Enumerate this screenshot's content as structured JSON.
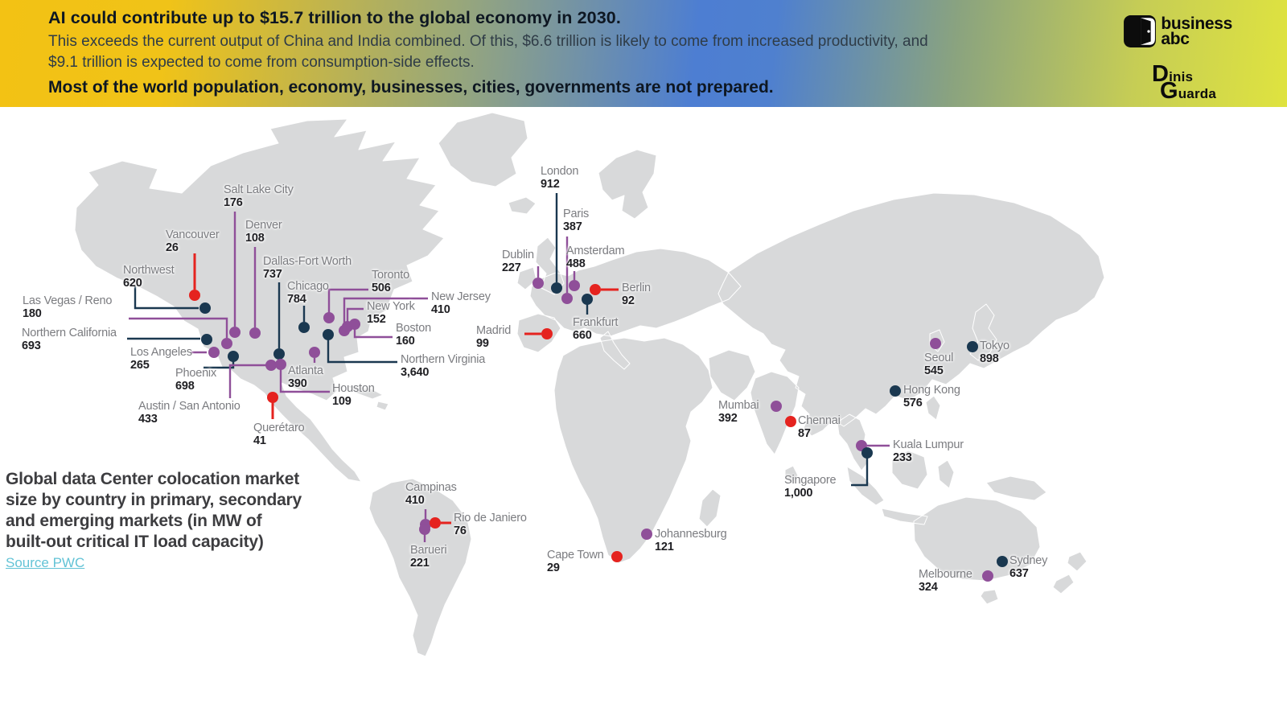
{
  "header": {
    "title": "AI could contribute up to $15.7 trillion to the global economy in 2030.",
    "subtitle_lines": [
      "This exceeds the current output of China and India combined. Of this, $6.6 trillion is likely to come from increased productivity, and",
      "$9.1 trillion is expected to come from consumption-side effects."
    ],
    "warning": "Most of the world population, economy, businesses, cities, governments are not prepared.",
    "gradient": {
      "left": "#f3c214",
      "middle": "#4d7ed2",
      "right": "#dfe33f"
    }
  },
  "branding": {
    "businessabc": {
      "line1": "business",
      "line2": "abc"
    },
    "dinisguarda": {
      "line1": "Dinis",
      "line2": "Guarda"
    }
  },
  "caption": {
    "lines": [
      "Global data Center colocation market",
      "size by country in primary, secondary",
      "and emerging markets (in MW of",
      "built-out critical IT load capacity)"
    ],
    "source_label": "Source PWC"
  },
  "chart_data": {
    "type": "scatter",
    "basemap": "world",
    "unit": "MW",
    "title": "Global data Center colocation market size by country in primary, secondary and emerging markets (in MW of built-out critical IT load capacity)",
    "source": "PWC",
    "legend_position": "none",
    "category_colors": {
      "primary": "#1a3850",
      "secondary": "#8f4f99",
      "emerging": "#e5231f"
    },
    "map_land_color": "#d8d9da",
    "cities": [
      {
        "name": "Vancouver",
        "value": 26,
        "display": "26",
        "cat": "emerging",
        "dot": [
          242,
          367
        ],
        "label": [
          206,
          284
        ],
        "line": [
          [
            242,
            315
          ],
          [
            242,
            360
          ]
        ]
      },
      {
        "name": "Northwest",
        "value": 620,
        "display": "620",
        "cat": "primary",
        "dot": [
          255,
          383
        ],
        "label": [
          153,
          328
        ],
        "line": [
          [
            168,
            356
          ],
          [
            168,
            383
          ],
          [
            247,
            383
          ]
        ]
      },
      {
        "name": "Salt Lake City",
        "value": 176,
        "display": "176",
        "cat": "secondary",
        "dot": [
          292,
          413
        ],
        "label": [
          278,
          228
        ],
        "line": [
          [
            292,
            263
          ],
          [
            292,
            406
          ]
        ]
      },
      {
        "name": "Denver",
        "value": 108,
        "display": "108",
        "cat": "secondary",
        "dot": [
          317,
          414
        ],
        "label": [
          305,
          272
        ],
        "line": [
          [
            317,
            307
          ],
          [
            317,
            407
          ]
        ]
      },
      {
        "name": "Las Vegas / Reno",
        "value": 180,
        "display": "180",
        "cat": "secondary",
        "dot": [
          282,
          427
        ],
        "label": [
          28,
          366
        ],
        "line": [
          [
            160,
            396
          ],
          [
            282,
            396
          ],
          [
            282,
            420
          ]
        ]
      },
      {
        "name": "Northern California",
        "value": 693,
        "display": "693",
        "cat": "primary",
        "dot": [
          257,
          422
        ],
        "label": [
          27,
          406
        ],
        "line": [
          [
            158,
            421
          ],
          [
            249,
            421
          ]
        ]
      },
      {
        "name": "Los Angeles",
        "value": 265,
        "display": "265",
        "cat": "secondary",
        "dot": [
          266,
          438
        ],
        "label": [
          162,
          430
        ],
        "line": [
          [
            237,
            438
          ],
          [
            257,
            438
          ]
        ]
      },
      {
        "name": "Phoenix",
        "value": 698,
        "display": "698",
        "cat": "primary",
        "dot": [
          290,
          443
        ],
        "label": [
          218,
          456
        ],
        "line": [
          [
            290,
            443
          ],
          [
            290,
            457
          ],
          [
            253,
            457
          ]
        ]
      },
      {
        "name": "Austin / San Antonio",
        "value": 433,
        "display": "433",
        "cat": "secondary",
        "dot": [
          337,
          454
        ],
        "label": [
          172,
          497
        ],
        "line": [
          [
            337,
            454
          ],
          [
            286,
            454
          ],
          [
            286,
            495
          ]
        ]
      },
      {
        "name": "Dallas-Fort Worth",
        "value": 737,
        "display": "737",
        "cat": "primary",
        "dot": [
          347,
          440
        ],
        "label": [
          327,
          317
        ],
        "line": [
          [
            347,
            351
          ],
          [
            347,
            433
          ]
        ]
      },
      {
        "name": "Houston",
        "value": 109,
        "display": "109",
        "cat": "secondary",
        "dot": [
          349,
          453
        ],
        "label": [
          413,
          475
        ],
        "line": [
          [
            349,
            459
          ],
          [
            349,
            487
          ],
          [
            410,
            487
          ]
        ]
      },
      {
        "name": "Querétaro",
        "value": 41,
        "display": "41",
        "cat": "emerging",
        "dot": [
          339,
          494
        ],
        "label": [
          315,
          524
        ],
        "line": [
          [
            339,
            500
          ],
          [
            339,
            521
          ]
        ]
      },
      {
        "name": "Chicago",
        "value": 784,
        "display": "784",
        "cat": "primary",
        "dot": [
          378,
          407
        ],
        "label": [
          357,
          348
        ],
        "line": [
          [
            378,
            380
          ],
          [
            378,
            400
          ]
        ]
      },
      {
        "name": "Atlanta",
        "value": 390,
        "display": "390",
        "cat": "secondary",
        "dot": [
          391,
          438
        ],
        "label": [
          358,
          453
        ],
        "line": [
          [
            391,
            445
          ],
          [
            391,
            451
          ]
        ]
      },
      {
        "name": "Toronto",
        "value": 506,
        "display": "506",
        "cat": "secondary",
        "dot": [
          409,
          395
        ],
        "label": [
          462,
          334
        ],
        "line": [
          [
            409,
            395
          ],
          [
            409,
            360
          ],
          [
            458,
            360
          ]
        ]
      },
      {
        "name": "New Jersey",
        "value": 410,
        "display": "410",
        "cat": "secondary",
        "dot": [
          428,
          411
        ],
        "label": [
          536,
          361
        ],
        "line": [
          [
            428,
            411
          ],
          [
            428,
            371
          ],
          [
            532,
            371
          ]
        ]
      },
      {
        "name": "New York",
        "value": 152,
        "display": "152",
        "cat": "secondary",
        "dot": [
          432,
          406
        ],
        "label": [
          456,
          373
        ],
        "line": [
          [
            432,
            406
          ],
          [
            432,
            384
          ],
          [
            452,
            384
          ]
        ]
      },
      {
        "name": "Boston",
        "value": 160,
        "display": "160",
        "cat": "secondary",
        "dot": [
          441,
          403
        ],
        "label": [
          492,
          400
        ],
        "line": [
          [
            441,
            403
          ],
          [
            441,
            419
          ],
          [
            488,
            419
          ]
        ]
      },
      {
        "name": "Northern Virginia",
        "value": 3640,
        "display": "3,640",
        "cat": "primary",
        "dot": [
          408,
          416
        ],
        "label": [
          498,
          439
        ],
        "line": [
          [
            408,
            416
          ],
          [
            408,
            450
          ],
          [
            494,
            450
          ]
        ]
      },
      {
        "name": "Campinas",
        "value": 410,
        "display": "410",
        "cat": "secondary",
        "dot": [
          529,
          652
        ],
        "label": [
          504,
          598
        ],
        "line": [
          [
            529,
            633
          ],
          [
            529,
            645
          ]
        ]
      },
      {
        "name": "Rio de Janiero",
        "value": 76,
        "display": "76",
        "cat": "emerging",
        "dot": [
          541,
          650
        ],
        "label": [
          564,
          636
        ],
        "line": [
          [
            548,
            650
          ],
          [
            561,
            650
          ]
        ]
      },
      {
        "name": "Barueri",
        "value": 221,
        "display": "221",
        "cat": "secondary",
        "dot": [
          528,
          658
        ],
        "label": [
          510,
          676
        ],
        "line": [
          [
            528,
            664
          ],
          [
            528,
            674
          ]
        ]
      },
      {
        "name": "Dublin",
        "value": 227,
        "display": "227",
        "cat": "secondary",
        "dot": [
          669,
          352
        ],
        "label": [
          624,
          309
        ],
        "line": [
          [
            669,
            331
          ],
          [
            669,
            345
          ]
        ]
      },
      {
        "name": "London",
        "value": 912,
        "display": "912",
        "cat": "primary",
        "dot": [
          692,
          358
        ],
        "label": [
          672,
          205
        ],
        "line": [
          [
            692,
            240
          ],
          [
            692,
            351
          ]
        ]
      },
      {
        "name": "Paris",
        "value": 387,
        "display": "387",
        "cat": "secondary",
        "dot": [
          705,
          371
        ],
        "label": [
          700,
          258
        ],
        "line": [
          [
            705,
            294
          ],
          [
            705,
            364
          ]
        ]
      },
      {
        "name": "Amsterdam",
        "value": 488,
        "display": "488",
        "cat": "secondary",
        "dot": [
          714,
          355
        ],
        "label": [
          704,
          304
        ],
        "line": [
          [
            714,
            337
          ],
          [
            714,
            348
          ]
        ]
      },
      {
        "name": "Berlin",
        "value": 92,
        "display": "92",
        "cat": "emerging",
        "dot": [
          740,
          360
        ],
        "label": [
          773,
          350
        ],
        "line": [
          [
            747,
            360
          ],
          [
            769,
            360
          ]
        ]
      },
      {
        "name": "Frankfurt",
        "value": 660,
        "display": "660",
        "cat": "primary",
        "dot": [
          730,
          372
        ],
        "label": [
          712,
          393
        ],
        "line": [
          [
            730,
            378
          ],
          [
            730,
            391
          ]
        ]
      },
      {
        "name": "Madrid",
        "value": 99,
        "display": "99",
        "cat": "emerging",
        "dot": [
          680,
          415
        ],
        "label": [
          592,
          403
        ],
        "line": [
          [
            652,
            415
          ],
          [
            673,
            415
          ]
        ]
      },
      {
        "name": "Mumbai",
        "value": 392,
        "display": "392",
        "cat": "secondary",
        "dot": [
          965,
          505
        ],
        "label": [
          893,
          496
        ],
        "line": null
      },
      {
        "name": "Chennai",
        "value": 87,
        "display": "87",
        "cat": "emerging",
        "dot": [
          983,
          524
        ],
        "label": [
          992,
          515
        ],
        "line": null
      },
      {
        "name": "Seoul",
        "value": 545,
        "display": "545",
        "cat": "secondary",
        "dot": [
          1163,
          427
        ],
        "label": [
          1149,
          437
        ],
        "line": null
      },
      {
        "name": "Tokyo",
        "value": 898,
        "display": "898",
        "cat": "primary",
        "dot": [
          1209,
          431
        ],
        "label": [
          1218,
          422
        ],
        "line": null
      },
      {
        "name": "Hong Kong",
        "value": 576,
        "display": "576",
        "cat": "primary",
        "dot": [
          1113,
          486
        ],
        "label": [
          1123,
          477
        ],
        "line": null
      },
      {
        "name": "Kuala Lumpur",
        "value": 233,
        "display": "233",
        "cat": "secondary",
        "dot": [
          1071,
          554
        ],
        "label": [
          1110,
          545
        ],
        "line": [
          [
            1078,
            554
          ],
          [
            1106,
            554
          ]
        ]
      },
      {
        "name": "Singapore",
        "value": 1000,
        "display": "1,000",
        "cat": "primary",
        "dot": [
          1078,
          563
        ],
        "label": [
          975,
          589
        ],
        "line": [
          [
            1078,
            563
          ],
          [
            1078,
            603
          ],
          [
            1058,
            603
          ]
        ]
      },
      {
        "name": "Johannesburg",
        "value": 121,
        "display": "121",
        "cat": "secondary",
        "dot": [
          804,
          664
        ],
        "label": [
          814,
          656
        ],
        "line": null
      },
      {
        "name": "Cape Town",
        "value": 29,
        "display": "29",
        "cat": "emerging",
        "dot": [
          767,
          692
        ],
        "label": [
          680,
          682
        ],
        "line": null
      },
      {
        "name": "Sydney",
        "value": 637,
        "display": "637",
        "cat": "primary",
        "dot": [
          1246,
          698
        ],
        "label": [
          1255,
          689
        ],
        "line": null
      },
      {
        "name": "Melbourne",
        "value": 324,
        "display": "324",
        "cat": "secondary",
        "dot": [
          1228,
          716
        ],
        "label": [
          1142,
          706
        ],
        "line": null
      }
    ]
  }
}
